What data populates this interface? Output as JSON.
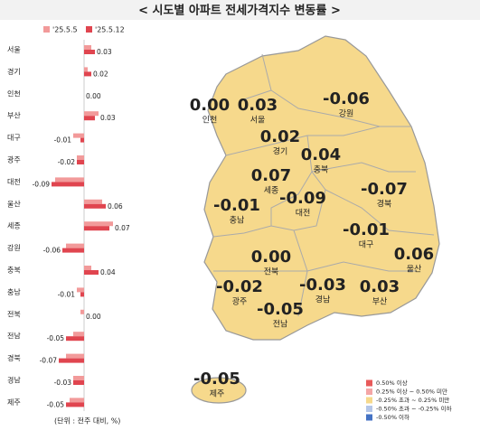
{
  "chart_data": {
    "type": "bar",
    "orientation": "horizontal",
    "title": "< 시도별 아파트 전세가격지수 변동률 >",
    "note": "(단위 : 전주 대비, %)",
    "categories": [
      "서울",
      "경기",
      "인천",
      "부산",
      "대구",
      "광주",
      "대전",
      "울산",
      "세종",
      "강원",
      "충북",
      "충남",
      "전북",
      "전남",
      "경북",
      "경남",
      "제주"
    ],
    "series": [
      {
        "name": "'25.5.5",
        "color": "#f29a9a",
        "values": [
          0.02,
          0.01,
          0.0,
          0.04,
          -0.03,
          -0.02,
          -0.08,
          0.05,
          0.08,
          -0.05,
          0.02,
          -0.02,
          -0.01,
          -0.03,
          -0.05,
          -0.03,
          -0.04
        ]
      },
      {
        "name": "'25.5.12",
        "color": "#e0454f",
        "values": [
          0.03,
          0.02,
          0.0,
          0.03,
          -0.01,
          -0.02,
          -0.09,
          0.06,
          0.07,
          -0.06,
          0.04,
          -0.01,
          0.0,
          -0.05,
          -0.07,
          -0.03,
          -0.05
        ],
        "value_labels": [
          "0.03",
          "0.02",
          "0.00",
          "0.03",
          "-0.01",
          "-0.02",
          "-0.09",
          "0.06",
          "0.07",
          "-0.06",
          "0.04",
          "-0.01",
          "0.00",
          "-0.05",
          "-0.07",
          "-0.03",
          "-0.05"
        ]
      }
    ],
    "xlim": [
      -0.1,
      0.1
    ],
    "map_legend": [
      {
        "label": "0.50% 이상",
        "color": "#e85a5a"
      },
      {
        "label": "0.25% 이상 ~ 0.50% 미만",
        "color": "#f4a6a6"
      },
      {
        "label": "-0.25% 초과 ~ 0.25% 미만",
        "color": "#f6d98c"
      },
      {
        "label": "-0.50% 초과 ~ -0.25% 이하",
        "color": "#b4c6e8"
      },
      {
        "label": "-0.50% 이하",
        "color": "#4472c4"
      }
    ]
  }
}
